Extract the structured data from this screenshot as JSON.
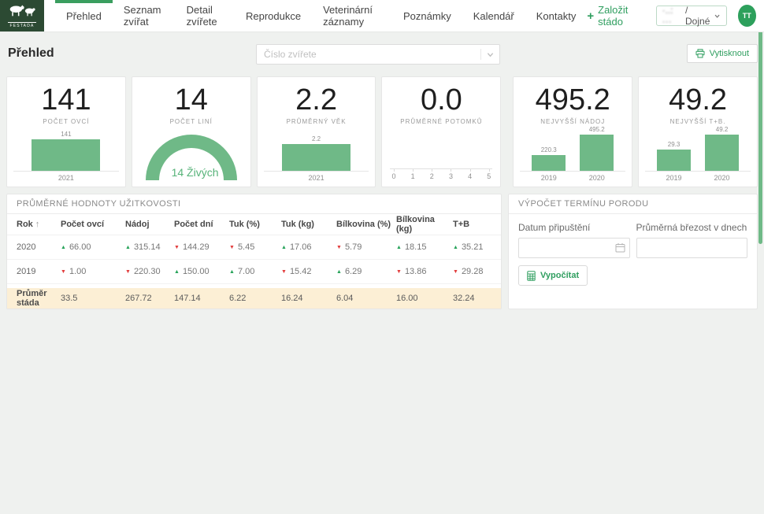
{
  "brand": {
    "name": "FESTADA"
  },
  "nav": {
    "active_tab": "Přehled",
    "tabs": [
      {
        "label": "Přehled"
      },
      {
        "label": "Seznam zvířat"
      },
      {
        "label": "Detail zvířete"
      },
      {
        "label": "Reprodukce"
      },
      {
        "label": "Veterinární záznamy"
      },
      {
        "label": "Poznámky"
      },
      {
        "label": "Kalendář"
      },
      {
        "label": "Kontakty"
      }
    ]
  },
  "header_right": {
    "create_herd_label": "Založit stádo",
    "herd_select_blurred": "·..: ···",
    "herd_select_visible": "/ Dojné",
    "avatar_initials": "TT"
  },
  "toolbar": {
    "page_title": "Přehled",
    "animal_number_placeholder": "Číslo zvířete",
    "print_label": "Vytisknout"
  },
  "stat_cards": [
    {
      "value": "141",
      "label": "POČET OVCÍ",
      "chart_data": {
        "type": "bar",
        "categories": [
          "2021"
        ],
        "values": [
          141
        ],
        "bar_labels": [
          "141"
        ]
      }
    },
    {
      "value": "14",
      "label": "POČET LINÍ",
      "chart_data": {
        "type": "gauge",
        "value": 14,
        "total": 14,
        "text": "14 Živých"
      }
    },
    {
      "value": "2.2",
      "label": "PRŮMĚRNÝ VĚK",
      "chart_data": {
        "type": "bar",
        "categories": [
          "2021"
        ],
        "values": [
          2.2
        ],
        "bar_labels": [
          "2.2"
        ]
      }
    },
    {
      "value": "0.0",
      "label": "PRŮMĚRNÉ POTOMKŮ",
      "chart_data": {
        "type": "bar",
        "categories": [],
        "values": [],
        "x_ticks": [
          "0",
          "1",
          "2",
          "3",
          "4",
          "5"
        ],
        "xlim": [
          0,
          5
        ]
      }
    },
    {
      "value": "495.2",
      "label": "NEJVYŠŠÍ NÁDOJ",
      "chart_data": {
        "type": "bar",
        "categories": [
          "2019",
          "2020"
        ],
        "values": [
          220.3,
          495.2
        ],
        "bar_labels": [
          "220.3",
          "495.2"
        ]
      }
    },
    {
      "value": "49.2",
      "label": "NEJVYŠŠÍ T+B.",
      "chart_data": {
        "type": "bar",
        "categories": [
          "2019",
          "2020"
        ],
        "values": [
          29.3,
          49.2
        ],
        "bar_labels": [
          "29.3",
          "49.2"
        ]
      }
    }
  ],
  "performance_table": {
    "title": "PRŮMĚRNÉ HODNOTY UŽITKOVOSTI",
    "sort_icon": "↑",
    "columns": [
      "Rok",
      "Počet ovcí",
      "Nádoj",
      "Počet dní",
      "Tuk (%)",
      "Tuk (kg)",
      "Bílkovina (%)",
      "Bílkovina (kg)",
      "T+B"
    ],
    "rows": [
      {
        "year": "2020",
        "cells": [
          {
            "trend": "up",
            "value": "66.00"
          },
          {
            "trend": "up",
            "value": "315.14"
          },
          {
            "trend": "down",
            "value": "144.29"
          },
          {
            "trend": "down",
            "value": "5.45"
          },
          {
            "trend": "up",
            "value": "17.06"
          },
          {
            "trend": "down",
            "value": "5.79"
          },
          {
            "trend": "up",
            "value": "18.15"
          },
          {
            "trend": "up",
            "value": "35.21"
          }
        ]
      },
      {
        "year": "2019",
        "cells": [
          {
            "trend": "down",
            "value": "1.00"
          },
          {
            "trend": "down",
            "value": "220.30"
          },
          {
            "trend": "up",
            "value": "150.00"
          },
          {
            "trend": "up",
            "value": "7.00"
          },
          {
            "trend": "down",
            "value": "15.42"
          },
          {
            "trend": "up",
            "value": "6.29"
          },
          {
            "trend": "down",
            "value": "13.86"
          },
          {
            "trend": "down",
            "value": "29.28"
          }
        ]
      }
    ],
    "footer": {
      "label": "Průměr stáda",
      "values": [
        "33.5",
        "267.72",
        "147.14",
        "6.22",
        "16.24",
        "6.04",
        "16.00",
        "32.24"
      ]
    }
  },
  "birth_calculator": {
    "title": "VÝPOČET TERMÍNU PORODU",
    "date_label": "Datum připuštění",
    "gestation_label": "Průměrná březost v dnech",
    "calc_button_label": "Vypočítat"
  },
  "colors": {
    "accent_green": "#2f9e5f",
    "bar_green": "#6fb987",
    "logo_green": "#2c4a33",
    "trend_up": "#27a35a",
    "trend_down": "#e23d3d",
    "footer_row_bg": "#fcefd5"
  }
}
